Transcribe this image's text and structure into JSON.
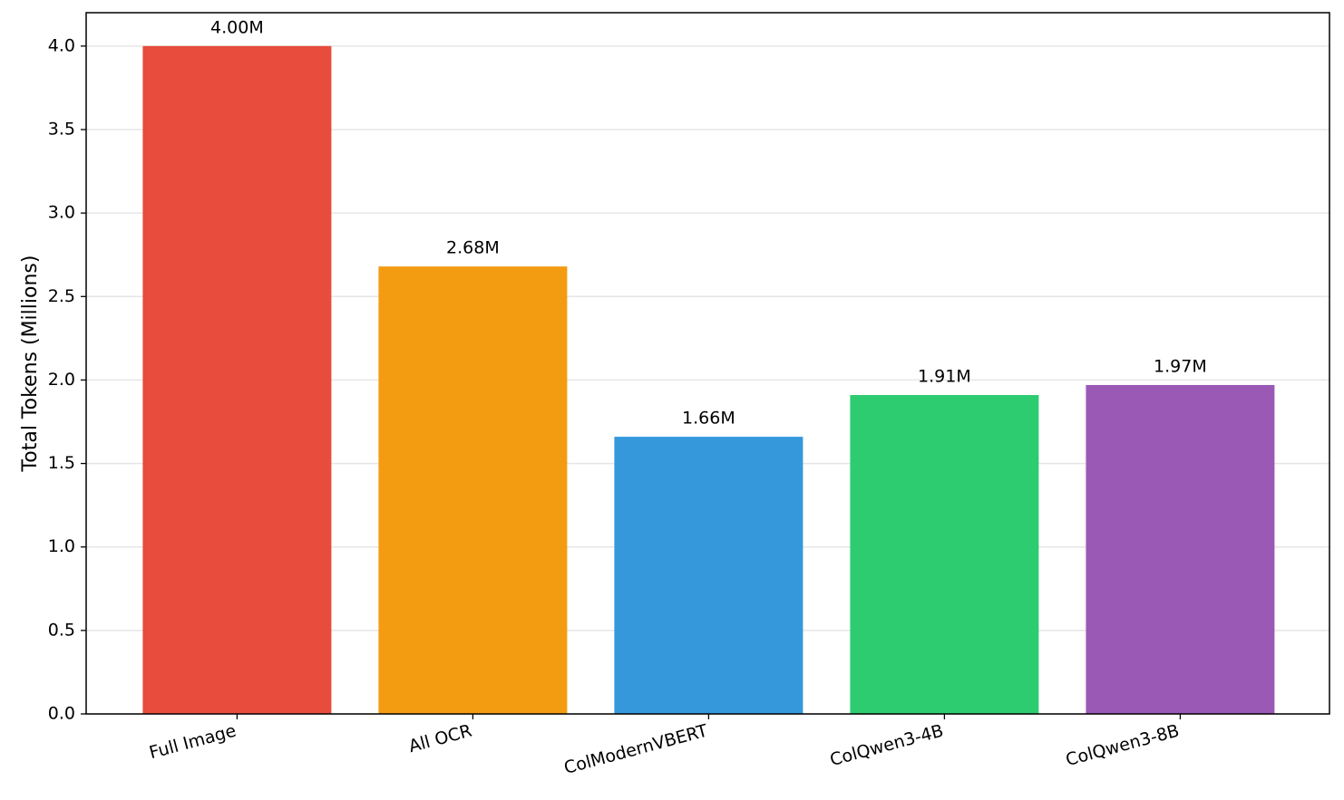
{
  "chart_data": {
    "type": "bar",
    "y_label": "Total Tokens (Millions)",
    "categories": [
      "Full Image",
      "All OCR",
      "ColModernVBERT",
      "ColQwen3-4B",
      "ColQwen3-8B"
    ],
    "values": [
      4.0,
      2.68,
      1.66,
      1.91,
      1.97
    ],
    "value_labels": [
      "4.00M",
      "2.68M",
      "1.66M",
      "1.91M",
      "1.97M"
    ],
    "colors": [
      "#e74c3c",
      "#f39c12",
      "#3498db",
      "#2ecc71",
      "#9b59b6"
    ],
    "ylim": [
      0,
      4.2
    ],
    "yticks": [
      {
        "value": 0,
        "label": "0.0"
      },
      0.5,
      {
        "value": 1,
        "label": "1.0"
      },
      1.5,
      {
        "value": 2,
        "label": "2.0"
      },
      2.5,
      {
        "value": 3,
        "label": "3.0"
      },
      3.5,
      {
        "value": 4,
        "label": "4.0"
      }
    ],
    "grid": true
  }
}
